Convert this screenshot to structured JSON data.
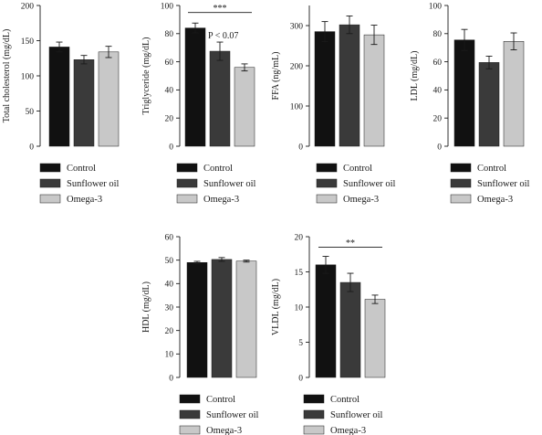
{
  "legend": {
    "entries": [
      {
        "label": "Control",
        "color": "#111111"
      },
      {
        "label": "Sunflower oil",
        "color": "#3a3a3a"
      },
      {
        "label": "Omega-3",
        "color": "#c8c8c8"
      }
    ]
  },
  "chart_data": [
    {
      "type": "bar",
      "ylabel": "Total cholesterol (mg/dL)",
      "categories": [
        "Control",
        "Sunflower oil",
        "Omega-3"
      ],
      "values": [
        141,
        123,
        134
      ],
      "errors": [
        7,
        6,
        8
      ],
      "ylim": [
        0,
        200
      ],
      "yticks": [
        0,
        50,
        100,
        150,
        200
      ],
      "annotations": [],
      "legend_position": "below"
    },
    {
      "type": "bar",
      "ylabel": "Triglyceride (mg/dL)",
      "categories": [
        "Control",
        "Sunflower oil",
        "Omega-3"
      ],
      "values": [
        84,
        67.5,
        56
      ],
      "errors": [
        3.5,
        6.5,
        2.5
      ],
      "ylim": [
        0,
        100
      ],
      "yticks": [
        0,
        20,
        40,
        60,
        80,
        100
      ],
      "annotations": [
        {
          "text": "***",
          "from": 0,
          "to": 2,
          "y": 95
        },
        {
          "text": "P < 0.07",
          "from": 0,
          "to": 1,
          "y": 79
        }
      ],
      "legend_position": "below"
    },
    {
      "type": "bar",
      "ylabel": "FFA (ng/mL)",
      "categories": [
        "Control",
        "Sunflower oil",
        "Omega-3"
      ],
      "values": [
        285,
        302,
        277
      ],
      "errors": [
        25,
        22,
        24
      ],
      "ylim": [
        0,
        350
      ],
      "yticks": [
        0,
        100,
        200,
        300
      ],
      "annotations": [],
      "legend_position": "below"
    },
    {
      "type": "bar",
      "ylabel": "LDL (mg/dL)",
      "categories": [
        "Control",
        "Sunflower oil",
        "Omega-3"
      ],
      "values": [
        75.5,
        59.5,
        74.5
      ],
      "errors": [
        7.5,
        4.5,
        6
      ],
      "ylim": [
        0,
        100
      ],
      "yticks": [
        0,
        20,
        40,
        60,
        80,
        100
      ],
      "annotations": [],
      "legend_position": "below"
    },
    {
      "type": "bar",
      "ylabel": "HDL (mg/dL)",
      "categories": [
        "Control",
        "Sunflower oil",
        "Omega-3"
      ],
      "values": [
        49,
        50.3,
        49.6
      ],
      "errors": [
        0.5,
        0.8,
        0.4
      ],
      "ylim": [
        0,
        60
      ],
      "yticks": [
        0,
        10,
        20,
        30,
        40,
        50,
        60
      ],
      "annotations": [],
      "legend_position": "below"
    },
    {
      "type": "bar",
      "ylabel": "VLDL (mg/dL)",
      "categories": [
        "Control",
        "Sunflower oil",
        "Omega-3"
      ],
      "values": [
        16,
        13.5,
        11.1
      ],
      "errors": [
        1.2,
        1.3,
        0.6
      ],
      "ylim": [
        0,
        20
      ],
      "yticks": [
        0,
        5,
        10,
        15,
        20
      ],
      "annotations": [
        {
          "text": "**",
          "from": 0,
          "to": 2,
          "y": 18.5
        }
      ],
      "legend_position": "below"
    }
  ]
}
